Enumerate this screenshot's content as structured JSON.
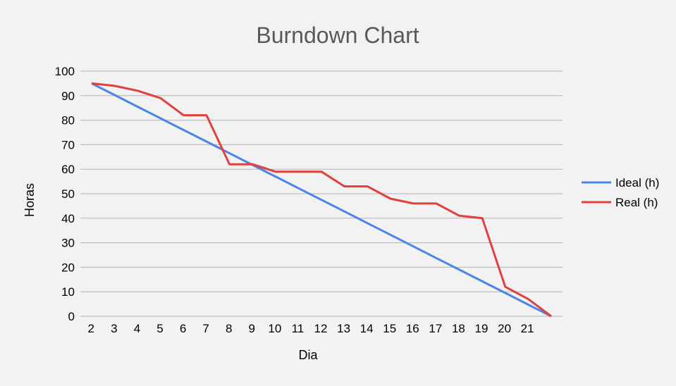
{
  "chart_data": {
    "type": "line",
    "title": "Burndown Chart",
    "xlabel": "Dia",
    "ylabel": "Horas",
    "x": [
      2,
      3,
      4,
      5,
      6,
      7,
      8,
      9,
      10,
      11,
      12,
      13,
      14,
      15,
      16,
      17,
      18,
      19,
      20,
      21,
      22
    ],
    "x_tick_labels": [
      "2",
      "3",
      "4",
      "5",
      "6",
      "7",
      "8",
      "9",
      "10",
      "11",
      "12",
      "13",
      "14",
      "15",
      "16",
      "17",
      "18",
      "19",
      "20",
      "21",
      ""
    ],
    "ylim": [
      0,
      100
    ],
    "y_ticks": [
      0,
      10,
      20,
      30,
      40,
      50,
      60,
      70,
      80,
      90,
      100
    ],
    "grid": true,
    "legend_position": "right",
    "series": [
      {
        "name": "Ideal (h)",
        "color": "#4a86e8",
        "values": [
          95,
          90.25,
          85.5,
          80.75,
          76,
          71.25,
          66.5,
          61.75,
          57,
          52.25,
          47.5,
          42.75,
          38,
          33.25,
          28.5,
          23.75,
          19,
          14.25,
          9.5,
          4.75,
          0
        ]
      },
      {
        "name": "Real (h)",
        "color": "#e0413c",
        "values": [
          95,
          94,
          92,
          89,
          82,
          82,
          62,
          62,
          59,
          59,
          59,
          53,
          53,
          48,
          46,
          46,
          41,
          40,
          12,
          7,
          0
        ]
      }
    ]
  }
}
